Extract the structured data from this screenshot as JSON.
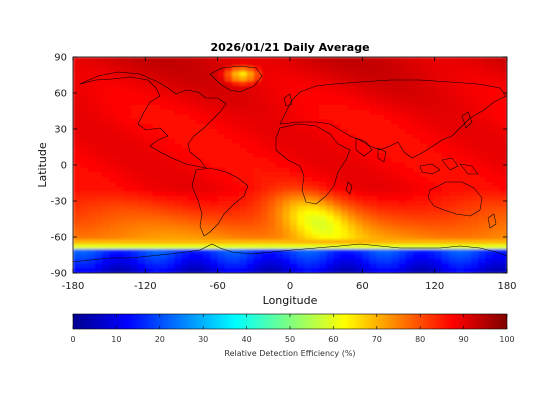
{
  "chart_data": {
    "type": "heatmap",
    "title": "2026/01/21 Daily Average",
    "xlabel": "Longitude",
    "ylabel": "Latitude",
    "xlim": [
      -180,
      180
    ],
    "ylim": [
      -90,
      90
    ],
    "xticks": [
      -180,
      -120,
      -60,
      0,
      60,
      120,
      180
    ],
    "yticks": [
      90,
      60,
      30,
      0,
      -30,
      -60,
      -90
    ],
    "colorbar": {
      "label": "Relative Detection Efficiency (%)",
      "min": 0,
      "max": 100,
      "ticks": [
        0,
        10,
        20,
        30,
        40,
        50,
        60,
        70,
        80,
        90,
        100
      ],
      "colormap": "jet"
    },
    "grid": false,
    "field_summary": {
      "background_value": 88,
      "high_latitude_north": 92,
      "greenland_minimum": 65,
      "south_atlantic_band": 68,
      "southern_ocean_minimum": 55,
      "antarctica_value": 8
    }
  },
  "colors": {
    "jet_low": "#00008f",
    "jet_high": "#800000",
    "background": "#ffffff",
    "coastline": "#000000"
  }
}
